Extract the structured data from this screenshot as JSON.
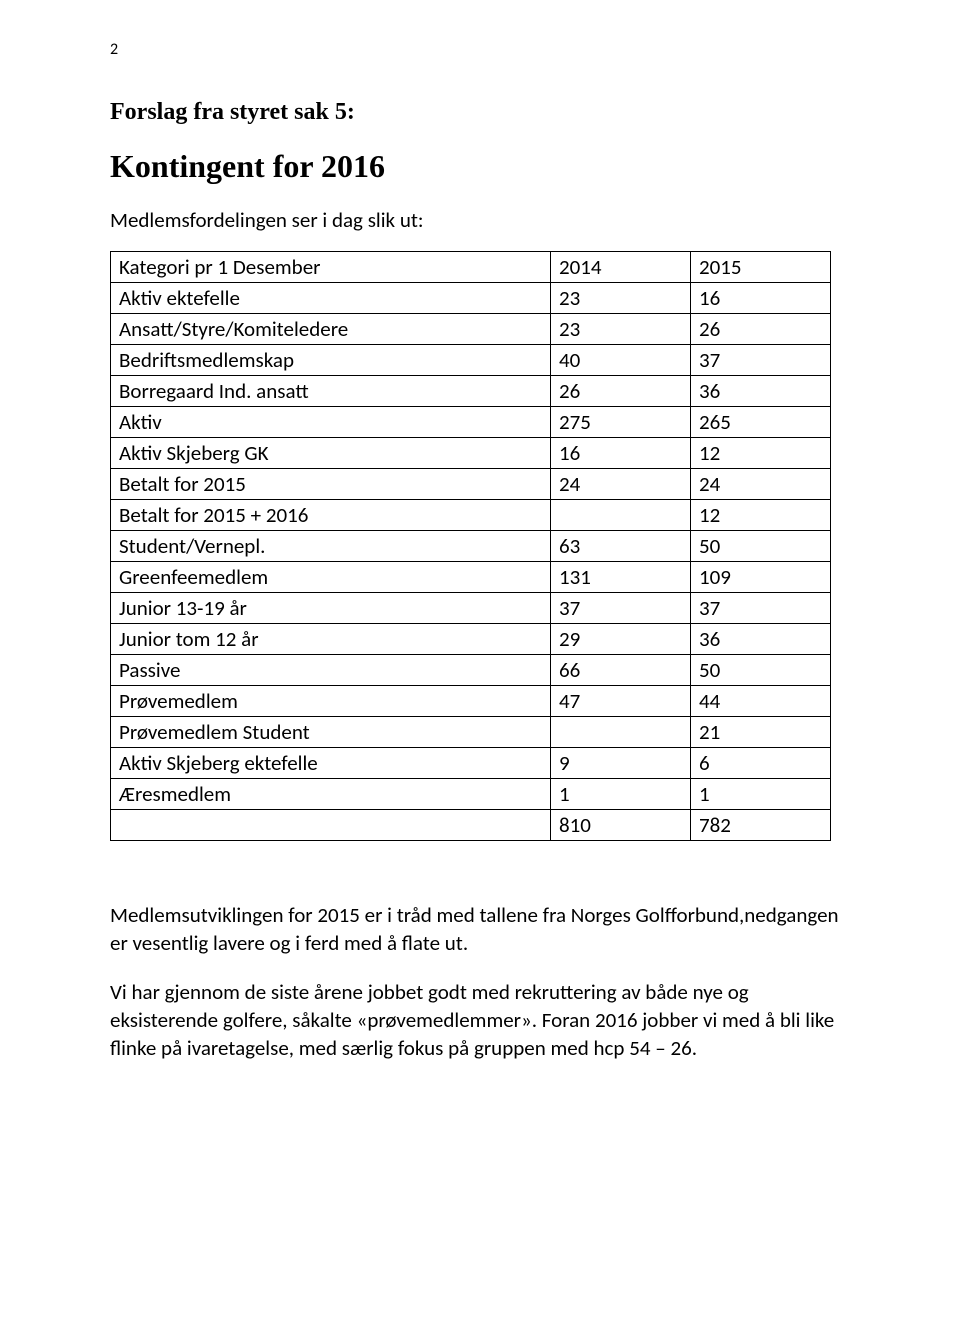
{
  "page_number": "2",
  "heading_small": "Forslag fra styret sak 5:",
  "heading_large": "Kontingent for 2016",
  "intro_line": "Medlemsfordelingen ser i dag slik ut:",
  "table": {
    "header": [
      "Kategori pr 1 Desember",
      "2014",
      "2015"
    ],
    "rows": [
      [
        "Aktiv ektefelle",
        "23",
        "16"
      ],
      [
        "Ansatt/Styre/Komiteledere",
        "23",
        "26"
      ],
      [
        "Bedriftsmedlemskap",
        "40",
        "37"
      ],
      [
        "Borregaard Ind. ansatt",
        "26",
        "36"
      ],
      [
        "Aktiv",
        "275",
        "265"
      ],
      [
        "Aktiv Skjeberg GK",
        "16",
        "12"
      ],
      [
        "Betalt for 2015",
        "24",
        "24"
      ],
      [
        "Betalt for 2015 + 2016",
        "",
        "12"
      ],
      [
        "Student/Vernepl.",
        "63",
        "50"
      ],
      [
        "Greenfeemedlem",
        "131",
        "109"
      ],
      [
        "Junior 13-19 år",
        "37",
        "37"
      ],
      [
        "Junior tom 12 år",
        "29",
        "36"
      ],
      [
        "Passive",
        "66",
        "50"
      ],
      [
        "Prøvemedlem",
        "47",
        "44"
      ],
      [
        "Prøvemedlem Student",
        "",
        "21"
      ],
      [
        "Aktiv Skjeberg ektefelle",
        "9",
        "6"
      ],
      [
        "Æresmedlem",
        "1",
        "1"
      ],
      [
        "",
        "810",
        "782"
      ]
    ]
  },
  "para1": "Medlemsutviklingen for 2015 er i tråd med tallene fra Norges Golfforbund,nedgangen er vesentlig lavere og i ferd med å flate ut.",
  "para2": "Vi har gjennom de siste årene jobbet godt med rekruttering av både nye og eksisterende golfere, såkalte «prøvemedlemmer». Foran 2016 jobber vi med å bli like flinke på ivaretagelse, med særlig fokus på gruppen med hcp 54 – 26."
}
